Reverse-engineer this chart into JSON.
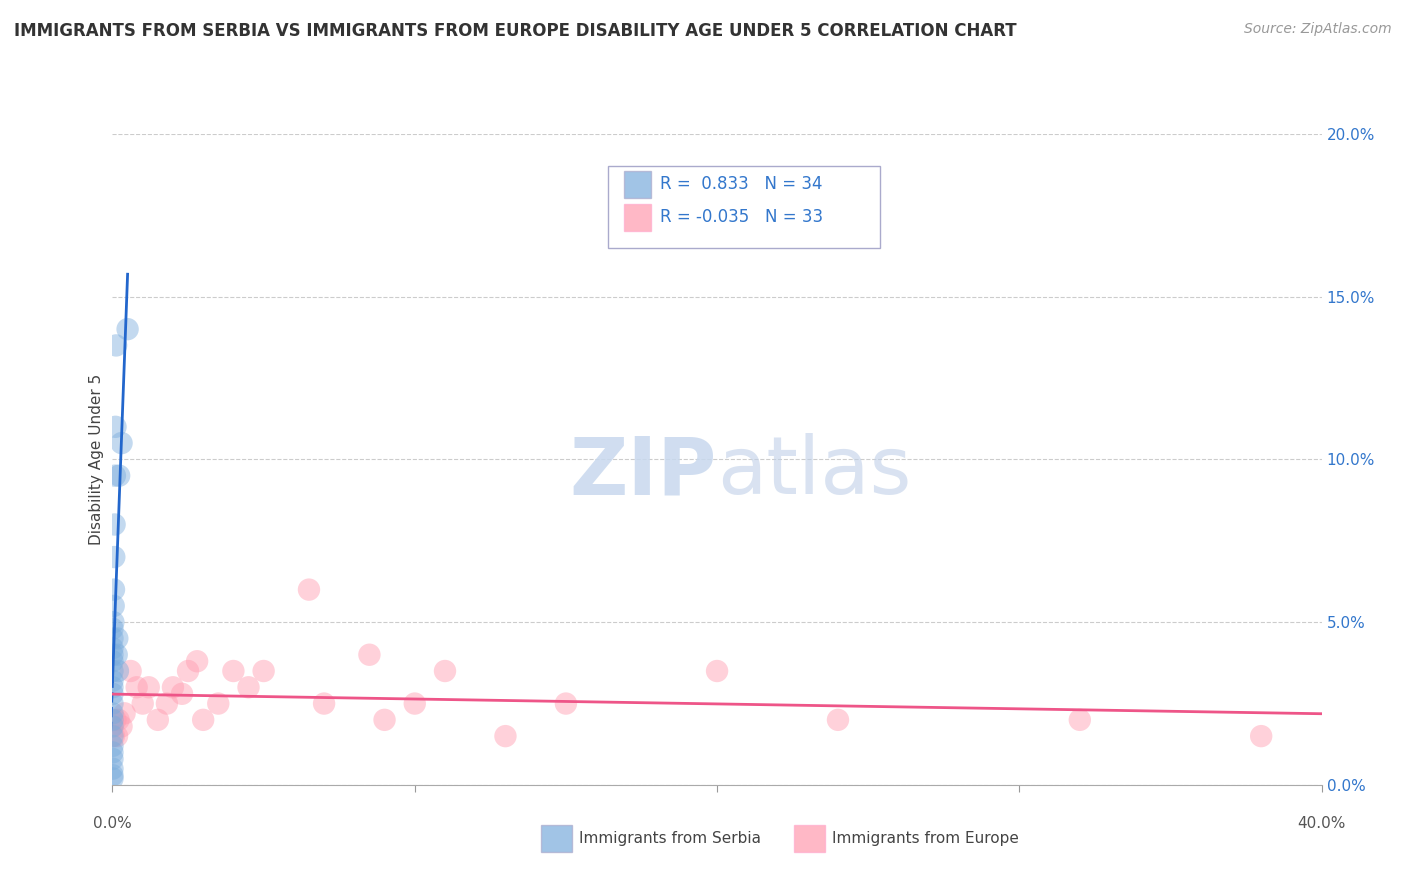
{
  "title": "IMMIGRANTS FROM SERBIA VS IMMIGRANTS FROM EUROPE DISABILITY AGE UNDER 5 CORRELATION CHART",
  "source": "Source: ZipAtlas.com",
  "ylabel": "Disability Age Under 5",
  "ytick_vals": [
    0.0,
    5.0,
    10.0,
    15.0,
    20.0
  ],
  "xlim": [
    0.0,
    40.0
  ],
  "ylim": [
    0.0,
    20.0
  ],
  "legend_serbia": "Immigrants from Serbia",
  "legend_europe": "Immigrants from Europe",
  "R_serbia": 0.833,
  "N_serbia": 34,
  "R_europe": -0.035,
  "N_europe": 33,
  "color_serbia": "#7AACDC",
  "color_europe": "#FF9AAF",
  "color_serbia_line": "#2266CC",
  "color_europe_line": "#EE5588",
  "serbia_x": [
    0.0,
    0.0,
    0.0,
    0.0,
    0.0,
    0.0,
    0.0,
    0.0,
    0.0,
    0.0,
    0.0,
    0.0,
    0.0,
    0.0,
    0.0,
    0.0,
    0.0,
    0.0,
    0.0,
    0.0,
    0.03,
    0.04,
    0.05,
    0.06,
    0.07,
    0.08,
    0.1,
    0.12,
    0.14,
    0.16,
    0.18,
    0.22,
    0.3,
    0.5
  ],
  "serbia_y": [
    0.2,
    0.3,
    0.5,
    0.8,
    1.0,
    1.2,
    1.5,
    1.8,
    2.0,
    2.2,
    2.5,
    2.8,
    3.0,
    3.2,
    3.5,
    3.8,
    4.0,
    4.2,
    4.5,
    4.8,
    5.0,
    5.5,
    6.0,
    7.0,
    8.0,
    9.5,
    11.0,
    13.5,
    4.0,
    4.5,
    3.5,
    9.5,
    10.5,
    14.0
  ],
  "europe_x": [
    0.05,
    0.1,
    0.15,
    0.2,
    0.3,
    0.4,
    0.6,
    0.8,
    1.0,
    1.2,
    1.5,
    1.8,
    2.0,
    2.3,
    2.5,
    2.8,
    3.0,
    3.5,
    4.0,
    4.5,
    5.0,
    6.5,
    7.0,
    8.5,
    9.0,
    10.0,
    11.0,
    13.0,
    15.0,
    20.0,
    24.0,
    32.0,
    38.0
  ],
  "europe_y": [
    1.5,
    2.0,
    1.5,
    2.0,
    1.8,
    2.2,
    3.5,
    3.0,
    2.5,
    3.0,
    2.0,
    2.5,
    3.0,
    2.8,
    3.5,
    3.8,
    2.0,
    2.5,
    3.5,
    3.0,
    3.5,
    6.0,
    2.5,
    4.0,
    2.0,
    2.5,
    3.5,
    1.5,
    2.5,
    3.5,
    2.0,
    2.0,
    1.5
  ]
}
